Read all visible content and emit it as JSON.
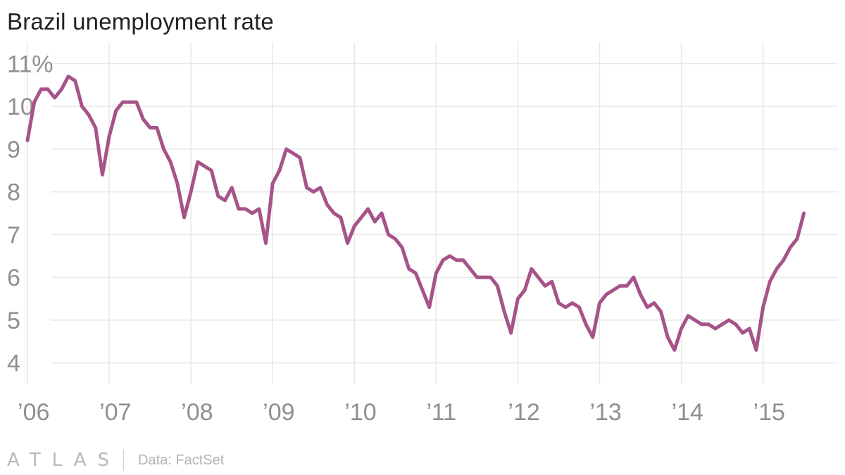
{
  "chart_data": {
    "type": "line",
    "title": "Brazil unemployment rate",
    "xlabel": "",
    "ylabel": "",
    "x_start": "2006-01",
    "x_frequency": "monthly",
    "x_tick_labels": [
      "’06",
      "’07",
      "’08",
      "’09",
      "’10",
      "’11",
      "’12",
      "’13",
      "’14",
      "’15"
    ],
    "x_tick_years": [
      2006,
      2007,
      2008,
      2009,
      2010,
      2011,
      2012,
      2013,
      2014,
      2015
    ],
    "xlim": [
      "2005-10",
      "2015-12"
    ],
    "y_ticks": [
      4,
      5,
      6,
      7,
      8,
      9,
      10,
      11
    ],
    "y_tick_labels": [
      "4",
      "5",
      "6",
      "7",
      "8",
      "9",
      "10",
      "11%"
    ],
    "ylim": [
      3.5,
      11.5
    ],
    "grid": true,
    "line_color": "#a65389",
    "series": [
      {
        "values": [
          9.2,
          10.1,
          10.4,
          10.4,
          10.2,
          10.4,
          10.7,
          10.6,
          10.0,
          9.8,
          9.5,
          8.4,
          9.3,
          9.9,
          10.1,
          10.1,
          10.1,
          9.7,
          9.5,
          9.5,
          9.0,
          8.7,
          8.2,
          7.4,
          8.0,
          8.7,
          8.6,
          8.5,
          7.9,
          7.8,
          8.1,
          7.6,
          7.6,
          7.5,
          7.6,
          6.8,
          8.2,
          8.5,
          9.0,
          8.9,
          8.8,
          8.1,
          8.0,
          8.1,
          7.7,
          7.5,
          7.4,
          6.8,
          7.2,
          7.4,
          7.6,
          7.3,
          7.5,
          7.0,
          6.9,
          6.7,
          6.2,
          6.1,
          5.7,
          5.3,
          6.1,
          6.4,
          6.5,
          6.4,
          6.4,
          6.2,
          6.0,
          6.0,
          6.0,
          5.8,
          5.2,
          4.7,
          5.5,
          5.7,
          6.2,
          6.0,
          5.8,
          5.9,
          5.4,
          5.3,
          5.4,
          5.3,
          4.9,
          4.6,
          5.4,
          5.6,
          5.7,
          5.8,
          5.8,
          6.0,
          5.6,
          5.3,
          5.4,
          5.2,
          4.6,
          4.3,
          4.8,
          5.1,
          5.0,
          4.9,
          4.9,
          4.8,
          4.9,
          5.0,
          4.9,
          4.7,
          4.8,
          4.3,
          5.3,
          5.9,
          6.2,
          6.4,
          6.7,
          6.9,
          7.5
        ]
      }
    ]
  },
  "footer": {
    "brand": "ATLAS",
    "source": "Data: FactSet"
  }
}
